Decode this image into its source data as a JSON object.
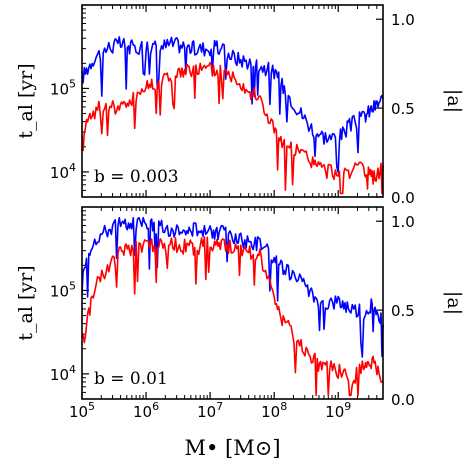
{
  "chart_data": [
    {
      "type": "line",
      "panel": "top",
      "annotation": "b = 0.003",
      "xlabel": "M• [M⊙]",
      "ylabel": "t_al [yr]",
      "y2label": "|a|",
      "x_scale": "log",
      "xlim": [
        100000,
        5000000000
      ],
      "y_scale": "log",
      "ylim": [
        5000,
        1000000
      ],
      "y2lim": [
        0.0,
        1.08
      ],
      "x_ticks": [
        "10^5",
        "10^6",
        "10^7",
        "10^8",
        "10^9"
      ],
      "y_ticks": [
        "10^4",
        "10^5"
      ],
      "y2_ticks": [
        "0.0",
        "0.5",
        "1.0"
      ],
      "series": [
        {
          "color": "#0000ff",
          "axis": "right",
          "x": [
            100000,
            150000,
            250000,
            400000,
            600000,
            1000000,
            1500000,
            2500000,
            4000000,
            6000000,
            10000000,
            15000000,
            25000000,
            40000000,
            60000000,
            100000000,
            150000000,
            250000000,
            400000000,
            600000000,
            1000000000,
            1500000000,
            2500000000,
            3500000000,
            5000000000
          ],
          "y": [
            0.67,
            0.78,
            0.84,
            0.86,
            0.84,
            0.85,
            0.84,
            0.86,
            0.85,
            0.83,
            0.84,
            0.83,
            0.78,
            0.76,
            0.74,
            0.7,
            0.6,
            0.48,
            0.38,
            0.34,
            0.33,
            0.4,
            0.45,
            0.5,
            0.55
          ]
        },
        {
          "color": "#ff0000",
          "axis": "right",
          "x": [
            100000,
            150000,
            250000,
            400000,
            600000,
            1000000,
            1500000,
            2500000,
            4000000,
            6000000,
            10000000,
            15000000,
            25000000,
            40000000,
            60000000,
            100000000,
            150000000,
            250000000,
            400000000,
            600000000,
            1000000000,
            1500000000,
            2500000000,
            3500000000,
            5000000000
          ],
          "y": [
            0.38,
            0.48,
            0.52,
            0.5,
            0.55,
            0.62,
            0.65,
            0.68,
            0.7,
            0.72,
            0.72,
            0.7,
            0.68,
            0.6,
            0.55,
            0.38,
            0.28,
            0.25,
            0.2,
            0.15,
            0.14,
            0.15,
            0.15,
            0.1,
            0.18
          ]
        }
      ]
    },
    {
      "type": "line",
      "panel": "bottom",
      "annotation": "b = 0.01",
      "xlabel": "M• [M⊙]",
      "ylabel": "t_al [yr]",
      "y2label": "|a|",
      "x_scale": "log",
      "xlim": [
        100000,
        5000000000
      ],
      "y_scale": "log",
      "ylim": [
        5000,
        1000000
      ],
      "y2lim": [
        0.0,
        1.08
      ],
      "x_ticks": [
        "10^5",
        "10^6",
        "10^7",
        "10^8",
        "10^9"
      ],
      "y_ticks": [
        "10^4",
        "10^5"
      ],
      "y2_ticks": [
        "0.0",
        "0.5",
        "1.0"
      ],
      "series": [
        {
          "color": "#0000ff",
          "axis": "right",
          "x": [
            100000,
            150000,
            250000,
            400000,
            600000,
            1000000,
            1500000,
            2500000,
            4000000,
            6000000,
            10000000,
            15000000,
            25000000,
            40000000,
            60000000,
            100000000,
            150000000,
            250000000,
            400000000,
            600000000,
            1000000000,
            1500000000,
            2500000000,
            3500000000,
            5000000000
          ],
          "y": [
            0.72,
            0.9,
            0.95,
            1.0,
            0.98,
            1.0,
            0.97,
            0.95,
            0.97,
            0.95,
            0.93,
            0.94,
            0.9,
            0.88,
            0.88,
            0.78,
            0.72,
            0.66,
            0.58,
            0.54,
            0.55,
            0.52,
            0.48,
            0.55,
            0.42
          ]
        },
        {
          "color": "#ff0000",
          "axis": "right",
          "x": [
            100000,
            150000,
            250000,
            400000,
            600000,
            1000000,
            1500000,
            2500000,
            4000000,
            6000000,
            10000000,
            15000000,
            25000000,
            40000000,
            60000000,
            100000000,
            150000000,
            250000000,
            400000000,
            600000000,
            1000000000,
            1500000000,
            2500000000,
            3500000000,
            5000000000
          ],
          "y": [
            0.3,
            0.6,
            0.74,
            0.82,
            0.85,
            0.86,
            0.86,
            0.87,
            0.86,
            0.85,
            0.88,
            0.86,
            0.84,
            0.82,
            0.8,
            0.55,
            0.42,
            0.3,
            0.22,
            0.18,
            0.16,
            0.1,
            0.18,
            0.2,
            0.1
          ]
        }
      ]
    }
  ]
}
